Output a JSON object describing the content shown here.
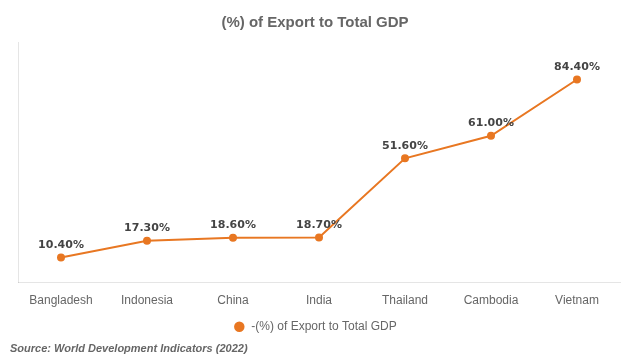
{
  "chart_data": {
    "type": "line",
    "title": "(%) of Export to Total GDP",
    "categories": [
      "Bangladesh",
      "Indonesia",
      "China",
      "India",
      "Thailand",
      "Cambodia",
      "Vietnam"
    ],
    "series": [
      {
        "name": "-(%) of Export to Total GDP",
        "color": "#E87722",
        "marker": "circle",
        "line_style": "solid",
        "values": [
          10.4,
          17.3,
          18.6,
          18.7,
          51.6,
          61.0,
          84.4
        ],
        "value_labels": [
          "10.40%",
          "17.30%",
          "18.60%",
          "18.70%",
          "51.60%",
          "61.00%",
          "84.40%"
        ]
      }
    ],
    "ylim": [
      0,
      100
    ],
    "grid": false,
    "legend": "bottom",
    "data_labels": true,
    "tick_labels": "x",
    "source": "Source: World Development Indicators (2022)"
  }
}
